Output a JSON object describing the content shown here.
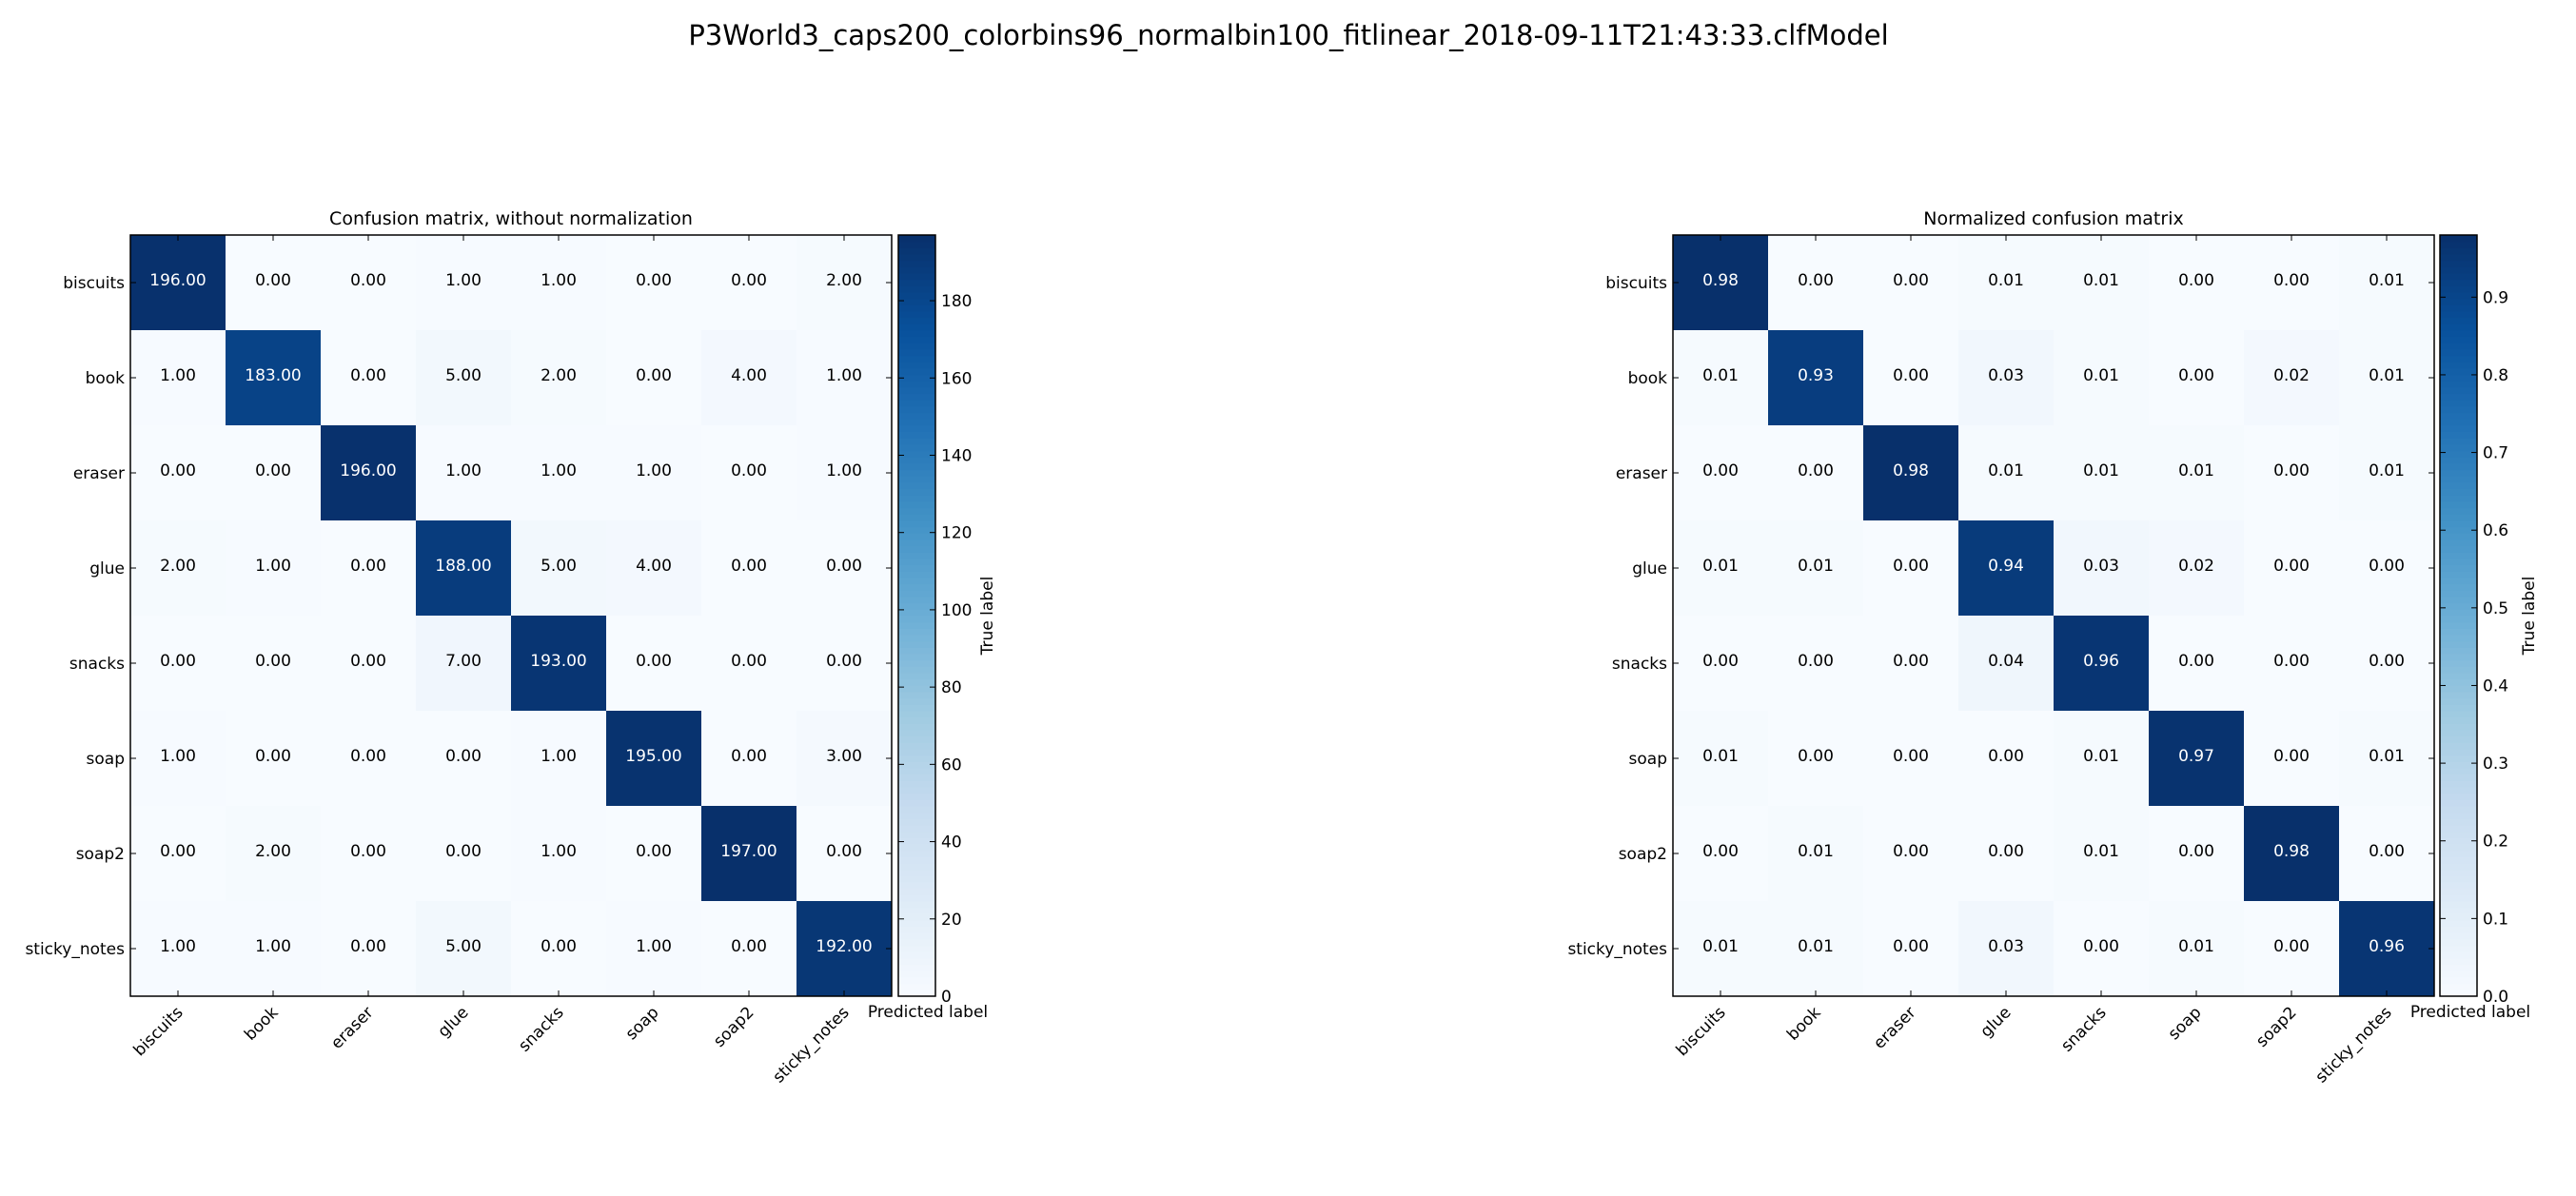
{
  "figure_title": "P3World3_caps200_colorbins96_normalbin100_fitlinear_2018-09-11T21:43:33.clfModel",
  "colors": {
    "cmap_low": "#f7fbff",
    "cmap_high": "#08306b",
    "text_dark": "#000000",
    "text_light": "#ffffff"
  },
  "chart_data": [
    {
      "type": "heatmap",
      "title": "Confusion matrix, without normalization",
      "xlabel": "Predicted label",
      "ylabel": "True label",
      "x_categories": [
        "biscuits",
        "book",
        "eraser",
        "glue",
        "snacks",
        "soap",
        "soap2",
        "sticky_notes"
      ],
      "y_categories": [
        "biscuits",
        "book",
        "eraser",
        "glue",
        "snacks",
        "soap",
        "soap2",
        "sticky_notes"
      ],
      "value_format": "0.00",
      "vmin": 0,
      "vmax": 197,
      "colorbar_ticks": [
        0,
        20,
        40,
        60,
        80,
        100,
        120,
        140,
        160,
        180
      ],
      "values": [
        [
          196,
          0,
          0,
          1,
          1,
          0,
          0,
          2
        ],
        [
          1,
          183,
          0,
          5,
          2,
          0,
          4,
          1
        ],
        [
          0,
          0,
          196,
          1,
          1,
          1,
          0,
          1
        ],
        [
          2,
          1,
          0,
          188,
          5,
          4,
          0,
          0
        ],
        [
          0,
          0,
          0,
          7,
          193,
          0,
          0,
          0
        ],
        [
          1,
          0,
          0,
          0,
          1,
          195,
          0,
          3
        ],
        [
          0,
          2,
          0,
          0,
          1,
          0,
          197,
          0
        ],
        [
          1,
          1,
          0,
          5,
          0,
          1,
          0,
          192
        ]
      ]
    },
    {
      "type": "heatmap",
      "title": "Normalized confusion matrix",
      "xlabel": "Predicted label",
      "ylabel": "True label",
      "x_categories": [
        "biscuits",
        "book",
        "eraser",
        "glue",
        "snacks",
        "soap",
        "soap2",
        "sticky_notes"
      ],
      "y_categories": [
        "biscuits",
        "book",
        "eraser",
        "glue",
        "snacks",
        "soap",
        "soap2",
        "sticky_notes"
      ],
      "value_format": "0.00",
      "vmin": 0,
      "vmax": 0.98,
      "colorbar_ticks": [
        0.0,
        0.1,
        0.2,
        0.3,
        0.4,
        0.5,
        0.6,
        0.7,
        0.8,
        0.9
      ],
      "values": [
        [
          0.98,
          0.0,
          0.0,
          0.01,
          0.01,
          0.0,
          0.0,
          0.01
        ],
        [
          0.01,
          0.93,
          0.0,
          0.03,
          0.01,
          0.0,
          0.02,
          0.01
        ],
        [
          0.0,
          0.0,
          0.98,
          0.01,
          0.01,
          0.01,
          0.0,
          0.01
        ],
        [
          0.01,
          0.01,
          0.0,
          0.94,
          0.03,
          0.02,
          0.0,
          0.0
        ],
        [
          0.0,
          0.0,
          0.0,
          0.04,
          0.96,
          0.0,
          0.0,
          0.0
        ],
        [
          0.01,
          0.0,
          0.0,
          0.0,
          0.01,
          0.97,
          0.0,
          0.01
        ],
        [
          0.0,
          0.01,
          0.0,
          0.0,
          0.01,
          0.0,
          0.98,
          0.0
        ],
        [
          0.01,
          0.01,
          0.0,
          0.03,
          0.0,
          0.01,
          0.0,
          0.96
        ]
      ]
    }
  ]
}
